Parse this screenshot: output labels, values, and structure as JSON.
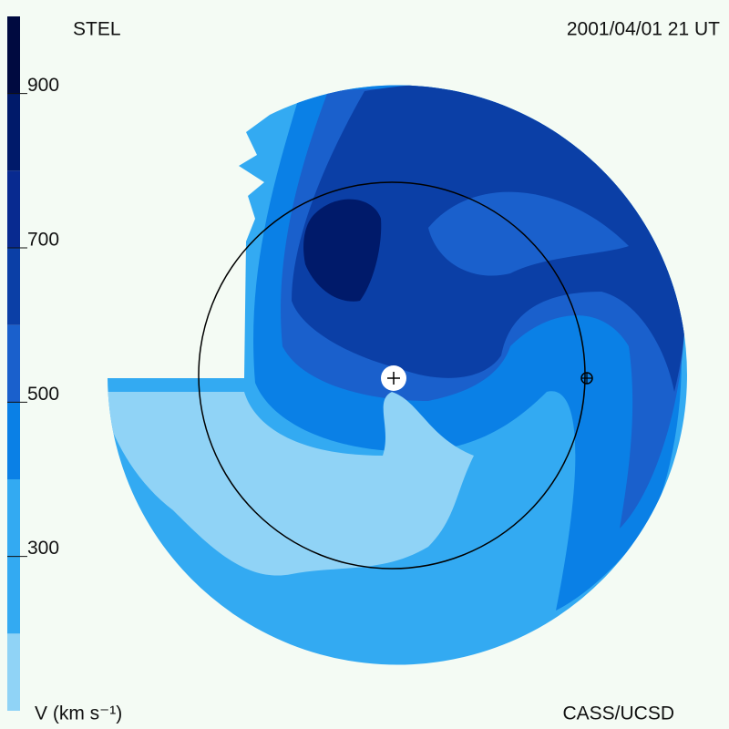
{
  "chart_data": {
    "type": "contour-map",
    "title": "STEL",
    "subtitle": "2001/04/01 21 UT",
    "credit": "CASS/UCSD",
    "colorbar_label": "V (km s⁻¹)",
    "levels": [
      100,
      200,
      400,
      500,
      600,
      700,
      800,
      900,
      1000
    ],
    "colors": [
      "#90d3f6",
      "#33aaf2",
      "#0a80e6",
      "#1a60cc",
      "#0b3fa6",
      "#082a90",
      "#001a6a",
      "#000a40"
    ],
    "ylim": [
      100,
      1000
    ],
    "yticks": [
      300,
      500,
      700,
      900
    ]
  }
}
